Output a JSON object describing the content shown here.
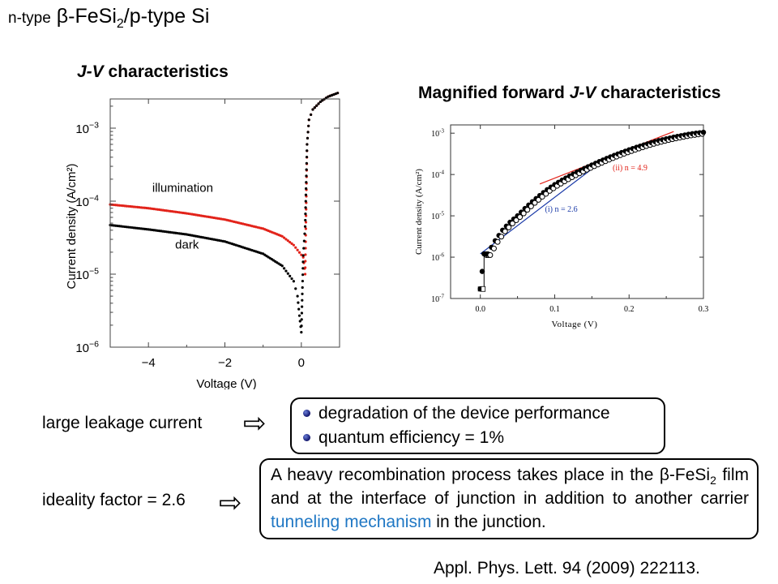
{
  "slide_title": {
    "pre": "n-type",
    "main": " β-FeSi",
    "sub": "2",
    "post": "/p-type Si"
  },
  "left_chart_title": {
    "italic": "J-V",
    "rest": " characteristics"
  },
  "right_chart_title": {
    "pre": "Magnified forward ",
    "italic": "J-V",
    "post": " characteristics"
  },
  "colors": {
    "illumination": "#e2231a",
    "dark": "#000000",
    "fit_ii": "#e2231a",
    "fit_i": "#1a3aa8",
    "tunneling": "#1f77c4",
    "bullet": "#1a237e"
  },
  "chart_data": [
    {
      "type": "scatter",
      "title": "J-V characteristics",
      "xlabel": "Voltage (V)",
      "ylabel": "Current density (A/cm²)",
      "xlim": [
        -5,
        1
      ],
      "ylim_log10": [
        -6,
        -2.6
      ],
      "y_scale": "log",
      "x_ticks": [
        "−4",
        "−2",
        "0"
      ],
      "y_ticks": [
        {
          "base": "10",
          "exp": "−6"
        },
        {
          "base": "10",
          "exp": "−5"
        },
        {
          "base": "10",
          "exp": "−4"
        },
        {
          "base": "10",
          "exp": "−3"
        }
      ],
      "annotations": [
        "illumination",
        "dark"
      ],
      "series": [
        {
          "name": "illumination",
          "color": "#e2231a",
          "x": [
            -5.0,
            -4.0,
            -3.0,
            -2.0,
            -1.0,
            -0.5,
            -0.2,
            0.05,
            0.1,
            0.15,
            0.2,
            0.3,
            0.5,
            0.7,
            1.0
          ],
          "y": [
            9e-05,
            8e-05,
            6.8e-05,
            5.6e-05,
            4.2e-05,
            3.3e-05,
            2.5e-05,
            1.7e-05,
            1e-05,
            0.0006,
            0.0013,
            0.0018,
            0.0023,
            0.0027,
            0.0031
          ]
        },
        {
          "name": "dark",
          "color": "#000000",
          "x": [
            -5.0,
            -4.0,
            -3.0,
            -2.0,
            -1.0,
            -0.5,
            -0.2,
            -0.1,
            -0.05,
            0.0,
            0.05,
            0.1,
            0.15,
            0.2,
            0.3,
            0.5,
            0.7,
            1.0
          ],
          "y": [
            4.7e-05,
            4.1e-05,
            3.5e-05,
            2.8e-05,
            1.9e-05,
            1.3e-05,
            8e-06,
            5e-06,
            2.7e-06,
            1.6e-06,
            1.8e-05,
            4.5e-05,
            0.0006,
            0.0013,
            0.0018,
            0.0023,
            0.0027,
            0.0031
          ]
        }
      ]
    },
    {
      "type": "scatter",
      "title": "Magnified forward J-V characteristics",
      "xlabel": "Voltage (V)",
      "ylabel": "Current density (A/cm²)",
      "xlim": [
        -0.04,
        0.3
      ],
      "ylim_log10": [
        -7,
        -2.8
      ],
      "y_scale": "log",
      "x_ticks": [
        "0.0",
        "0.1",
        "0.2",
        "0.3"
      ],
      "y_ticks": [
        {
          "base": "10",
          "exp": "-7"
        },
        {
          "base": "10",
          "exp": "-6"
        },
        {
          "base": "10",
          "exp": "-5"
        },
        {
          "base": "10",
          "exp": "-4"
        },
        {
          "base": "10",
          "exp": "-3"
        }
      ],
      "fits": [
        {
          "label": "(i) n = 2.6",
          "color": "#1a3aa8",
          "x": [
            0.0,
            0.16
          ],
          "log10y": [
            -5.92,
            -3.73
          ]
        },
        {
          "label": "(ii) n = 4.9",
          "color": "#e2231a",
          "x": [
            0.08,
            0.26
          ],
          "log10y": [
            -4.23,
            -2.96
          ]
        }
      ],
      "series": [
        {
          "name": "data",
          "color": "#000000",
          "x": [
            0.0,
            0.005,
            0.01,
            0.02,
            0.03,
            0.04,
            0.05,
            0.06,
            0.07,
            0.08,
            0.09,
            0.1,
            0.11,
            0.12,
            0.13,
            0.14,
            0.15,
            0.16,
            0.17,
            0.18,
            0.19,
            0.2,
            0.21,
            0.22,
            0.23,
            0.24,
            0.25,
            0.26,
            0.27,
            0.28,
            0.29,
            0.3
          ],
          "y": [
            1.7e-07,
            1.2e-06,
            1.2e-06,
            2.5e-06,
            4.5e-06,
            7e-06,
            1e-05,
            1.5e-05,
            2.2e-05,
            3.1e-05,
            4.3e-05,
            5.7e-05,
            7.3e-05,
            9.2e-05,
            0.000114,
            0.00014,
            0.00017,
            0.000205,
            0.000245,
            0.00029,
            0.00034,
            0.000395,
            0.000455,
            0.00052,
            0.00059,
            0.00066,
            0.00073,
            0.0008,
            0.00087,
            0.00094,
            0.001,
            0.00105
          ]
        }
      ]
    }
  ],
  "rows": [
    {
      "label": "large leakage current",
      "arrow": "⇨"
    },
    {
      "label": "ideality factor = 2.6",
      "arrow": "⇨"
    }
  ],
  "box1_items": [
    "degradation of the device performance",
    "quantum efficiency  = 1%"
  ],
  "box2": {
    "t1": "A heavy recombination process takes place in the β-FeSi",
    "sub": "2",
    "t2": " film and at the interface of junction in addition to another carrier ",
    "highlight": "tunneling mechanism",
    "t3": " in the junction."
  },
  "citation": "Appl. Phys. Lett. 94 (2009) 222113."
}
